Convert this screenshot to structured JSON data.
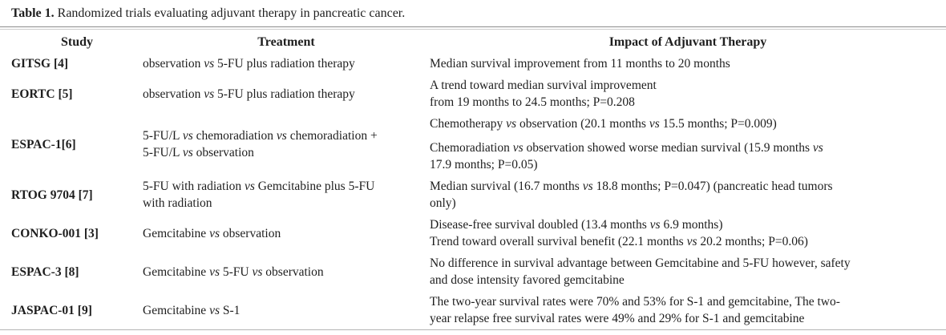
{
  "table": {
    "title_label": "Table 1.",
    "title_text": "Randomized trials evaluating adjuvant therapy in pancreatic cancer.",
    "columns": [
      "Study",
      "Treatment",
      "Impact of Adjuvant Therapy"
    ],
    "rows": [
      {
        "study": "GITSG [4]",
        "treatment": "observation vs 5-FU plus radiation therapy",
        "impact": [
          "Median survival improvement from 11 months to 20 months"
        ]
      },
      {
        "study": "EORTC [5]",
        "treatment": "observation vs 5-FU plus radiation therapy",
        "impact": [
          "A trend toward median survival improvement\nfrom 19 months to 24.5 months; P=0.208"
        ]
      },
      {
        "study": "ESPAC-1[6]",
        "treatment": "5-FU/L vs chemoradiation vs chemoradiation +\n5-FU/L vs observation",
        "impact": [
          "Chemotherapy vs observation (20.1 months vs 15.5 months; P=0.009)",
          "Chemoradiation vs observation showed worse median survival (15.9 months vs\n17.9 months; P=0.05)"
        ]
      },
      {
        "study": "RTOG 9704 [7]",
        "treatment": "5-FU with radiation vs Gemcitabine plus 5-FU\nwith radiation",
        "impact": [
          "Median survival (16.7 months vs 18.8 months; P=0.047) (pancreatic head tumors\nonly)"
        ]
      },
      {
        "study": "CONKO-001 [3]",
        "treatment": "Gemcitabine vs observation",
        "impact": [
          "Disease-free survival doubled (13.4 months vs 6.9 months)\nTrend toward overall survival benefit (22.1 months vs 20.2 months; P=0.06)"
        ]
      },
      {
        "study": "ESPAC-3 [8]",
        "treatment": "Gemcitabine vs 5-FU vs observation",
        "impact": [
          "No difference in survival advantage between Gemcitabine and 5-FU however, safety\nand dose intensity favored gemcitabine"
        ]
      },
      {
        "study": "JASPAC-01 [9]",
        "treatment": "Gemcitabine vs S-1",
        "impact": [
          "The two-year survival rates were 70% and 53% for S-1 and gemcitabine, The two-\nyear relapse free survival rates were 49% and 29% for S-1 and gemcitabine"
        ]
      }
    ]
  }
}
